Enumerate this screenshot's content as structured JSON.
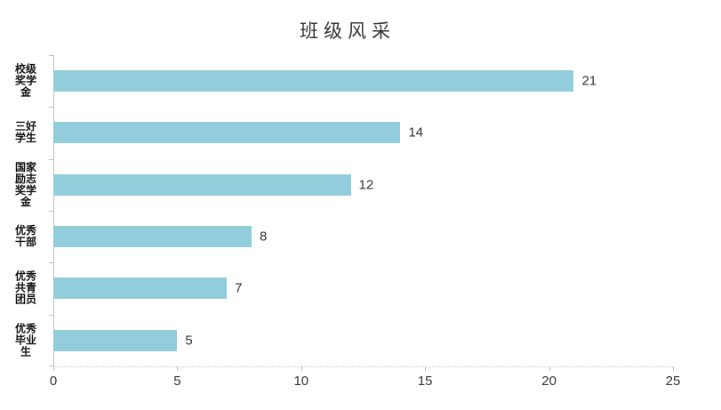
{
  "chart_data": {
    "type": "bar",
    "orientation": "horizontal",
    "title": "班级风采",
    "categories": [
      "校级奖学金",
      "三好学生",
      "国家励志奖学金",
      "优秀干部",
      "优秀共青团员",
      "优秀毕业生"
    ],
    "categories_wrapped": [
      "校级\n奖学\n金",
      "三好\n学生",
      "国家\n励志\n奖学\n金",
      "优秀\n干部",
      "优秀\n共青\n团员",
      "优秀\n毕业\n生"
    ],
    "values": [
      21,
      14,
      12,
      8,
      7,
      5
    ],
    "xlabel": "",
    "ylabel": "",
    "xlim": [
      0,
      25
    ],
    "xticks": [
      0,
      5,
      10,
      15,
      20,
      25
    ],
    "grid": false,
    "legend_position": "none",
    "colors": {
      "bar": "#92CDDC",
      "axis_line": "#BFBFBF",
      "x_axis_dotted_line": "#C9C9C9",
      "title_text": "#333333",
      "category_label_text": "#111111",
      "value_label_text": "#323232",
      "tick_label_text": "#323232",
      "background": "#FFFFFF"
    }
  }
}
